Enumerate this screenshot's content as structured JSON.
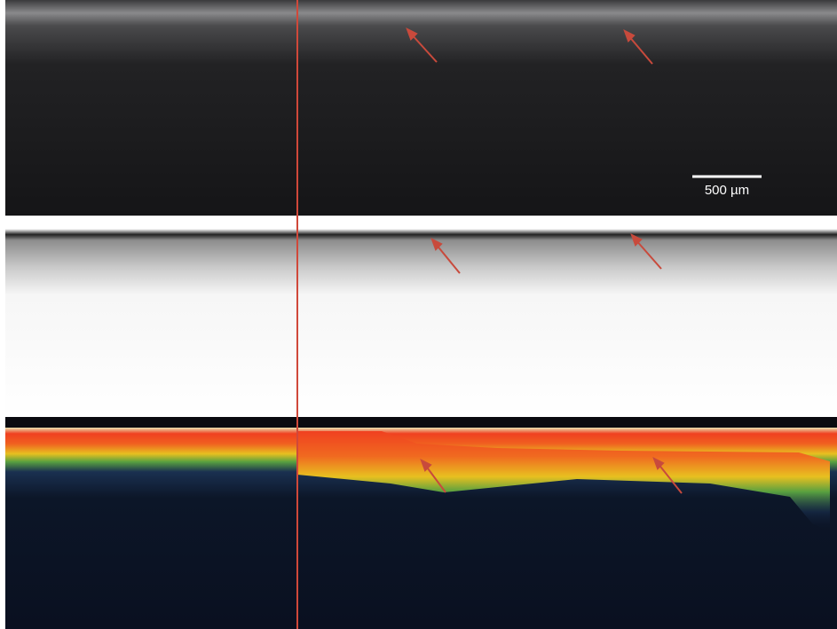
{
  "scale_bar": {
    "label": "500 µm"
  }
}
